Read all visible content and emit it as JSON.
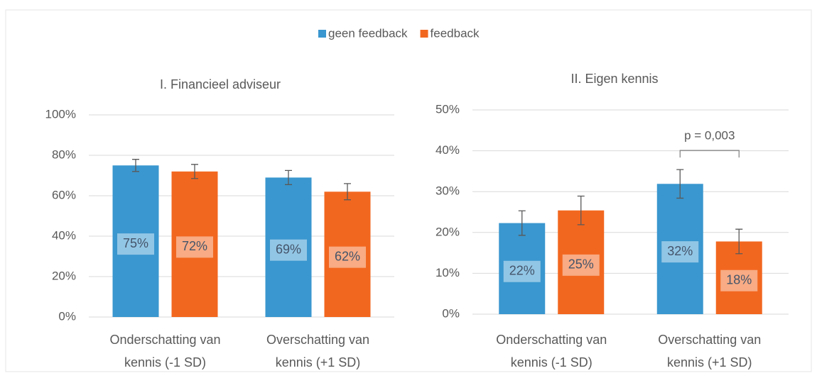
{
  "chart_data": [
    {
      "type": "bar",
      "title": "I. Financieel adviseur",
      "categories": [
        [
          "Onderschatting van",
          "kennis (-1 SD)"
        ],
        [
          "Overschatting van",
          "kennis (+1 SD)"
        ]
      ],
      "series": [
        {
          "name": "geen feedback",
          "color": "#3a97cf",
          "values": [
            75,
            69
          ],
          "errors": [
            3,
            3.5
          ],
          "value_labels": [
            "75%",
            "69%"
          ]
        },
        {
          "name": "feedback",
          "color": "#f2671f",
          "values": [
            72,
            62
          ],
          "errors": [
            3.5,
            4
          ],
          "value_labels": [
            "72%",
            "62%"
          ]
        }
      ],
      "ylim": [
        0,
        100
      ],
      "yticks": [
        {
          "value": 0,
          "label": "0%"
        },
        {
          "value": 20,
          "label": "20%"
        },
        {
          "value": 40,
          "label": "40%"
        },
        {
          "value": 60,
          "label": "60%"
        },
        {
          "value": 80,
          "label": "80%"
        },
        {
          "value": 100,
          "label": "100%"
        }
      ],
      "grid": true,
      "legend": "top"
    },
    {
      "type": "bar",
      "title": "II. Eigen kennis",
      "categories": [
        [
          "Onderschatting van",
          "kennis (-1 SD)"
        ],
        [
          "Overschatting van",
          "kennis (+1 SD)"
        ]
      ],
      "series": [
        {
          "color": "#3a97cf",
          "values": [
            22.3,
            31.9
          ],
          "errors": [
            3,
            3.5
          ],
          "value_labels": [
            "22%",
            "32%"
          ]
        },
        {
          "color": "#f2671f",
          "values": [
            25.4,
            17.8
          ],
          "errors": [
            3.5,
            3
          ],
          "value_labels": [
            "25%",
            "18%"
          ]
        }
      ],
      "ylim": [
        0,
        50
      ],
      "yticks": [
        {
          "value": 0,
          "label": "0%"
        },
        {
          "value": 10,
          "label": "10%"
        },
        {
          "value": 20,
          "label": "20%"
        },
        {
          "value": 30,
          "label": "30%"
        },
        {
          "value": 40,
          "label": "40%"
        },
        {
          "value": 50,
          "label": "50%"
        }
      ],
      "grid": true,
      "annotation": "p = 0,003"
    }
  ]
}
